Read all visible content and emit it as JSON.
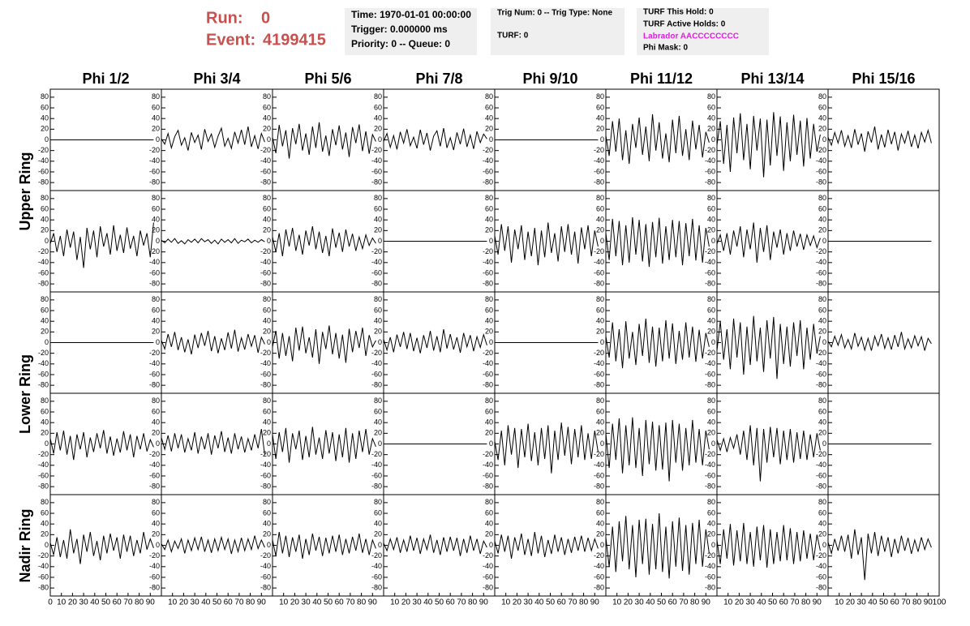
{
  "header": {
    "run_label": "Run:",
    "run": "0",
    "event_label": "Event:",
    "event": "4199415",
    "box1": [
      "Time: 1970-01-01 00:00:00",
      "Trigger: 0.000000 ms",
      "Priority: 0 -- Queue: 0"
    ],
    "box2": [
      "Trig Num: 0 -- Trig Type: None",
      "TURF: 0"
    ],
    "box3": [
      "TURF This Hold: 0",
      "TURF Active Holds: 0",
      "Labrador AACCCCCCCC",
      "Phi Mask: 0"
    ]
  },
  "columns": [
    "Phi 1/2",
    "Phi 3/4",
    "Phi 5/6",
    "Phi 7/8",
    "Phi 9/10",
    "Phi 11/12",
    "Phi 13/14",
    "Phi 15/16"
  ],
  "rows": [
    "Upper Ring",
    "Lower Ring",
    "Nadir Ring"
  ],
  "axes": {
    "xlim": [
      0,
      100
    ],
    "ylim": [
      -95,
      95
    ],
    "xticks": [
      0,
      10,
      20,
      30,
      40,
      50,
      60,
      70,
      80,
      90,
      100
    ],
    "yticks": [
      -80,
      -60,
      -40,
      -20,
      0,
      20,
      40,
      60,
      80
    ],
    "x": [
      0,
      3,
      6,
      9,
      12,
      15,
      18,
      21,
      24,
      27,
      30,
      33,
      36,
      39,
      42,
      45,
      48,
      51,
      54,
      57,
      60,
      63,
      66,
      69,
      72,
      75,
      78,
      81,
      84,
      87,
      90,
      93
    ]
  },
  "chart_data": [
    {
      "type": "line",
      "values": [
        0,
        0,
        0,
        0,
        0,
        0,
        0,
        0,
        0,
        0,
        0,
        0,
        0,
        0,
        0,
        0,
        0,
        0,
        0,
        0,
        0,
        0,
        0,
        0,
        0,
        0,
        0,
        0,
        0,
        0,
        0,
        0
      ]
    },
    {
      "type": "line",
      "values": [
        2,
        -8,
        12,
        -15,
        6,
        18,
        -10,
        4,
        -20,
        14,
        -5,
        9,
        -18,
        20,
        -3,
        11,
        -14,
        7,
        22,
        -12,
        3,
        -16,
        15,
        -6,
        19,
        -9,
        25,
        -13,
        8,
        -17,
        12,
        -4
      ]
    },
    {
      "type": "line",
      "values": [
        5,
        -25,
        28,
        -12,
        18,
        -35,
        22,
        -8,
        30,
        -20,
        12,
        -28,
        25,
        -15,
        33,
        -22,
        8,
        -30,
        20,
        -10,
        27,
        -18,
        14,
        -32,
        24,
        -6,
        29,
        -21,
        16,
        -26,
        10,
        -3
      ]
    },
    {
      "type": "line",
      "values": [
        -3,
        12,
        -14,
        8,
        -18,
        15,
        -6,
        20,
        -11,
        5,
        -16,
        19,
        -9,
        13,
        -20,
        7,
        17,
        -12,
        22,
        -15,
        4,
        -19,
        14,
        -8,
        21,
        -13,
        9,
        -17,
        16,
        -5,
        11,
        2
      ]
    },
    {
      "type": "line",
      "values": [
        0,
        0,
        0,
        0,
        0,
        0,
        0,
        0,
        0,
        0,
        0,
        0,
        0,
        0,
        0,
        0,
        0,
        0,
        0,
        0,
        0,
        0,
        0,
        0,
        0,
        0,
        0,
        0,
        0,
        0,
        0,
        0
      ]
    },
    {
      "type": "line",
      "values": [
        8,
        -30,
        35,
        -22,
        40,
        -38,
        18,
        -45,
        30,
        -15,
        42,
        -28,
        25,
        -40,
        48,
        -20,
        33,
        -35,
        12,
        -42,
        38,
        -25,
        45,
        -30,
        20,
        -38,
        36,
        -18,
        28,
        -33,
        15,
        -5
      ]
    },
    {
      "type": "line",
      "values": [
        -10,
        35,
        -45,
        28,
        -60,
        42,
        -25,
        50,
        -38,
        30,
        -55,
        45,
        -20,
        40,
        -70,
        38,
        -48,
        52,
        -30,
        44,
        -58,
        33,
        -40,
        47,
        -28,
        36,
        -50,
        41,
        -35,
        30,
        -22,
        10
      ]
    },
    {
      "type": "line",
      "values": [
        5,
        -10,
        14,
        -6,
        18,
        -12,
        8,
        -15,
        20,
        -9,
        12,
        -22,
        16,
        -5,
        25,
        -18,
        10,
        -14,
        19,
        -8,
        15,
        -20,
        11,
        -6,
        17,
        -13,
        9,
        -16,
        14,
        -4,
        18,
        -6
      ]
    },
    {
      "type": "line",
      "values": [
        -5,
        15,
        -20,
        10,
        -28,
        22,
        -12,
        18,
        -35,
        8,
        -50,
        25,
        -15,
        20,
        -30,
        28,
        -10,
        15,
        -25,
        30,
        -18,
        12,
        -22,
        26,
        -14,
        10,
        -28,
        20,
        -8,
        15,
        -30,
        35
      ]
    },
    {
      "type": "line",
      "values": [
        2,
        -3,
        4,
        -2,
        5,
        -4,
        1,
        -5,
        3,
        -2,
        4,
        -3,
        5,
        -1,
        3,
        -4,
        2,
        -5,
        4,
        -2,
        3,
        -3,
        5,
        -4,
        2,
        -1,
        4,
        -3,
        2,
        -2,
        3,
        -1
      ]
    },
    {
      "type": "line",
      "values": [
        8,
        -20,
        15,
        -28,
        22,
        -10,
        25,
        -18,
        12,
        -25,
        20,
        -8,
        28,
        -15,
        18,
        -22,
        10,
        -28,
        24,
        -12,
        16,
        -20,
        22,
        -10,
        14,
        -18,
        8,
        -14,
        12,
        -8,
        6,
        -4
      ]
    },
    {
      "type": "line",
      "values": [
        0,
        0,
        0,
        0,
        0,
        0,
        0,
        0,
        0,
        0,
        0,
        0,
        0,
        0,
        0,
        0,
        0,
        0,
        0,
        0,
        0,
        0,
        0,
        0,
        0,
        0,
        0,
        0,
        0,
        0,
        0,
        0
      ]
    },
    {
      "type": "line",
      "values": [
        10,
        -25,
        32,
        -18,
        28,
        -40,
        22,
        -15,
        30,
        -35,
        18,
        -28,
        25,
        -45,
        20,
        -30,
        35,
        -22,
        15,
        -38,
        28,
        -20,
        32,
        -25,
        18,
        -42,
        26,
        -15,
        30,
        -28,
        20,
        -10
      ]
    },
    {
      "type": "line",
      "values": [
        15,
        -35,
        42,
        -28,
        38,
        -45,
        30,
        -40,
        45,
        -25,
        40,
        -38,
        32,
        -48,
        36,
        -30,
        44,
        -42,
        28,
        -35,
        40,
        -30,
        38,
        -45,
        34,
        -28,
        42,
        -36,
        30,
        -40,
        25,
        -10
      ]
    },
    {
      "type": "line",
      "values": [
        -5,
        12,
        -18,
        15,
        -25,
        20,
        -10,
        28,
        -30,
        22,
        -15,
        35,
        -40,
        25,
        -20,
        30,
        -35,
        18,
        -12,
        22,
        -25,
        15,
        -18,
        20,
        -10,
        14,
        -16,
        12,
        -8,
        10,
        -12,
        6
      ]
    },
    {
      "type": "line",
      "values": [
        0,
        0,
        0,
        0,
        0,
        0,
        0,
        0,
        0,
        0,
        0,
        0,
        0,
        0,
        0,
        0,
        0,
        0,
        0,
        0,
        0,
        0,
        0,
        0,
        0,
        0,
        0,
        0,
        0,
        0,
        0,
        0
      ]
    },
    {
      "type": "line",
      "values": [
        0,
        0,
        0,
        0,
        0,
        0,
        0,
        0,
        0,
        0,
        0,
        0,
        0,
        0,
        0,
        0,
        0,
        0,
        0,
        0,
        0,
        0,
        0,
        0,
        0,
        0,
        0,
        0,
        0,
        0,
        0,
        0
      ]
    },
    {
      "type": "line",
      "values": [
        4,
        -12,
        16,
        -8,
        20,
        -14,
        10,
        -18,
        6,
        -22,
        15,
        -10,
        18,
        -6,
        22,
        -16,
        12,
        -20,
        8,
        -14,
        19,
        -11,
        24,
        -17,
        9,
        -13,
        16,
        -7,
        14,
        -19,
        10,
        -3
      ]
    },
    {
      "type": "line",
      "values": [
        -8,
        22,
        -30,
        18,
        -25,
        12,
        -35,
        28,
        -15,
        30,
        -20,
        10,
        -28,
        25,
        -40,
        20,
        -12,
        32,
        -22,
        18,
        -30,
        15,
        -38,
        26,
        -18,
        22,
        -10,
        28,
        -25,
        14,
        -8,
        4
      ]
    },
    {
      "type": "line",
      "values": [
        6,
        -14,
        10,
        -18,
        15,
        -8,
        20,
        -12,
        18,
        -16,
        9,
        -20,
        14,
        -10,
        22,
        -15,
        12,
        -18,
        25,
        -11,
        16,
        -13,
        10,
        -19,
        18,
        -8,
        14,
        -16,
        11,
        -9,
        15,
        -5
      ]
    },
    {
      "type": "line",
      "values": [
        0,
        0,
        0,
        0,
        0,
        0,
        0,
        0,
        0,
        0,
        0,
        0,
        0,
        0,
        0,
        0,
        0,
        0,
        0,
        0,
        0,
        0,
        0,
        0,
        0,
        0,
        0,
        0,
        0,
        0,
        0,
        0
      ]
    },
    {
      "type": "line",
      "values": [
        12,
        -28,
        38,
        -35,
        25,
        -48,
        40,
        -30,
        20,
        -42,
        35,
        -25,
        45,
        -38,
        30,
        -45,
        28,
        -35,
        42,
        -30,
        36,
        -40,
        22,
        -32,
        38,
        -28,
        30,
        -36,
        24,
        -30,
        18,
        -8
      ]
    },
    {
      "type": "line",
      "values": [
        -15,
        40,
        -32,
        25,
        -50,
        45,
        -28,
        38,
        -60,
        30,
        -42,
        50,
        -35,
        28,
        -55,
        42,
        -30,
        48,
        -68,
        35,
        -40,
        30,
        -45,
        38,
        -25,
        42,
        -50,
        28,
        -32,
        35,
        -20,
        12
      ]
    },
    {
      "type": "line",
      "values": [
        3,
        -8,
        12,
        -5,
        15,
        -10,
        6,
        -12,
        18,
        -7,
        10,
        -14,
        8,
        -15,
        12,
        -6,
        16,
        -11,
        9,
        -13,
        14,
        -8,
        20,
        -12,
        7,
        -10,
        13,
        -6,
        11,
        -15,
        8,
        -2
      ]
    },
    {
      "type": "line",
      "values": [
        10,
        -18,
        22,
        -12,
        25,
        -20,
        15,
        -30,
        18,
        -10,
        22,
        -25,
        12,
        -15,
        20,
        -8,
        26,
        -18,
        14,
        -22,
        10,
        -16,
        24,
        -12,
        18,
        -25,
        15,
        -10,
        20,
        -14,
        8,
        -6
      ]
    },
    {
      "type": "line",
      "values": [
        12,
        -10,
        16,
        -14,
        20,
        -8,
        18,
        -16,
        10,
        -12,
        22,
        -18,
        14,
        -10,
        20,
        -20,
        16,
        -8,
        24,
        -15,
        12,
        -18,
        20,
        -10,
        14,
        -16,
        10,
        -12,
        18,
        -8,
        28,
        -20
      ]
    },
    {
      "type": "line",
      "values": [
        18,
        -28,
        22,
        -15,
        30,
        -35,
        20,
        -10,
        25,
        -30,
        15,
        -25,
        32,
        -20,
        12,
        -28,
        26,
        -18,
        22,
        -32,
        18,
        -25,
        30,
        -35,
        20,
        -28,
        25,
        -15,
        28,
        -20,
        10,
        -5
      ]
    },
    {
      "type": "line",
      "values": [
        0,
        0,
        0,
        0,
        0,
        0,
        0,
        0,
        0,
        0,
        0,
        0,
        0,
        0,
        0,
        0,
        0,
        0,
        0,
        0,
        0,
        0,
        0,
        0,
        0,
        0,
        0,
        0,
        0,
        0,
        0,
        0
      ]
    },
    {
      "type": "line",
      "values": [
        5,
        -30,
        25,
        -40,
        35,
        -20,
        30,
        -45,
        28,
        -25,
        38,
        -32,
        22,
        -40,
        30,
        -28,
        35,
        -55,
        25,
        -30,
        40,
        -22,
        32,
        -38,
        28,
        -25,
        35,
        -30,
        20,
        -28,
        25,
        -15
      ]
    },
    {
      "type": "line",
      "values": [
        20,
        -45,
        38,
        -30,
        48,
        -55,
        35,
        -40,
        50,
        -45,
        30,
        -60,
        45,
        -38,
        42,
        -50,
        35,
        -48,
        40,
        -70,
        45,
        -35,
        38,
        -50,
        30,
        -40,
        45,
        -35,
        28,
        -40,
        25,
        -10
      ]
    },
    {
      "type": "line",
      "values": [
        8,
        -12,
        10,
        -15,
        12,
        -8,
        18,
        -20,
        25,
        -30,
        35,
        -40,
        30,
        -70,
        28,
        -35,
        32,
        -25,
        30,
        -38,
        25,
        -30,
        28,
        -35,
        22,
        -28,
        25,
        -30,
        18,
        -25,
        20,
        -12
      ]
    },
    {
      "type": "line",
      "values": [
        0,
        0,
        0,
        0,
        0,
        0,
        0,
        0,
        0,
        0,
        0,
        0,
        0,
        0,
        0,
        0,
        0,
        0,
        0,
        0,
        0,
        0,
        0,
        0,
        0,
        0,
        0,
        0,
        0,
        0,
        0,
        0
      ]
    },
    {
      "type": "line",
      "values": [
        5,
        -18,
        15,
        -22,
        10,
        -25,
        30,
        -15,
        12,
        -35,
        20,
        -12,
        25,
        -20,
        8,
        -28,
        18,
        -15,
        22,
        -10,
        15,
        -25,
        20,
        -12,
        18,
        -20,
        10,
        -15,
        25,
        -8,
        12,
        -5
      ]
    },
    {
      "type": "line",
      "values": [
        3,
        -8,
        10,
        -12,
        8,
        -6,
        12,
        -15,
        10,
        -10,
        14,
        -8,
        16,
        -12,
        10,
        -14,
        12,
        -10,
        15,
        -8,
        12,
        -16,
        10,
        -12,
        14,
        -10,
        12,
        -8,
        18,
        -6,
        10,
        -4
      ]
    },
    {
      "type": "line",
      "values": [
        10,
        -20,
        25,
        -15,
        18,
        -22,
        15,
        -12,
        20,
        -25,
        12,
        -18,
        22,
        -10,
        16,
        -20,
        14,
        -15,
        18,
        -12,
        20,
        -18,
        12,
        -15,
        16,
        -10,
        22,
        -14,
        12,
        -18,
        10,
        -6
      ]
    },
    {
      "type": "line",
      "values": [
        4,
        -10,
        12,
        -8,
        15,
        -14,
        10,
        -12,
        18,
        -10,
        14,
        -16,
        12,
        -8,
        20,
        -14,
        10,
        -18,
        15,
        -12,
        16,
        -10,
        14,
        -20,
        12,
        -14,
        18,
        -10,
        12,
        -16,
        8,
        -4
      ]
    },
    {
      "type": "line",
      "values": [
        8,
        -15,
        20,
        -12,
        18,
        -25,
        15,
        -10,
        22,
        -18,
        12,
        -20,
        25,
        -15,
        18,
        -22,
        10,
        -16,
        20,
        -12,
        15,
        -18,
        12,
        -14,
        16,
        -10,
        18,
        -12,
        14,
        -10,
        12,
        -6
      ]
    },
    {
      "type": "line",
      "values": [
        15,
        -40,
        35,
        -50,
        45,
        -30,
        55,
        -45,
        38,
        -60,
        48,
        -35,
        50,
        -55,
        40,
        -45,
        60,
        -50,
        35,
        -62,
        45,
        -40,
        52,
        -48,
        38,
        -55,
        42,
        -35,
        48,
        -40,
        30,
        -15
      ]
    },
    {
      "type": "line",
      "values": [
        10,
        -35,
        30,
        -25,
        40,
        -38,
        28,
        -30,
        42,
        -35,
        25,
        -40,
        35,
        -28,
        38,
        -42,
        30,
        -35,
        25,
        -30,
        38,
        -28,
        32,
        -35,
        25,
        -30,
        28,
        -25,
        22,
        -28,
        20,
        -10
      ]
    },
    {
      "type": "line",
      "values": [
        6,
        -15,
        12,
        -10,
        18,
        -12,
        20,
        -25,
        30,
        -18,
        15,
        -65,
        22,
        -15,
        25,
        -20,
        18,
        -12,
        15,
        -22,
        12,
        -15,
        18,
        -10,
        14,
        -16,
        10,
        -12,
        15,
        -8,
        12,
        -4
      ]
    }
  ]
}
